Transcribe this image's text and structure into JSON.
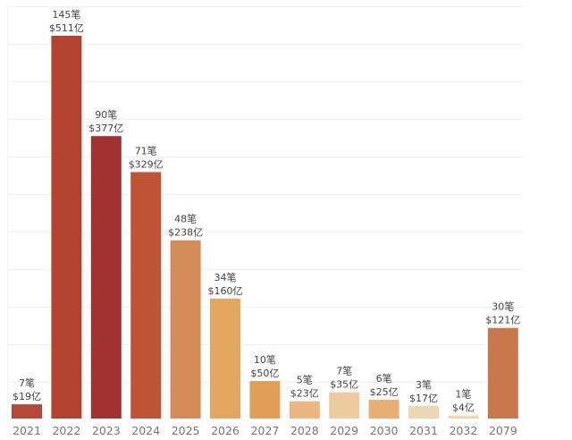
{
  "chart_data": {
    "type": "bar",
    "title": "",
    "xlabel": "",
    "ylabel": "",
    "ylim": [
      0,
      511
    ],
    "grid": true,
    "legend": "none",
    "categories": [
      "2021",
      "2022",
      "2023",
      "2024",
      "2025",
      "2026",
      "2027",
      "2028",
      "2029",
      "2030",
      "2031",
      "2032",
      "2079"
    ],
    "series": [
      {
        "name": "amount_yi_usd",
        "values": [
          19,
          511,
          377,
          329,
          238,
          160,
          50,
          23,
          35,
          25,
          17,
          4,
          121
        ]
      },
      {
        "name": "count",
        "values": [
          7,
          145,
          90,
          71,
          48,
          34,
          10,
          5,
          7,
          6,
          3,
          1,
          30
        ]
      }
    ],
    "count_labels": [
      "7笔",
      "145笔",
      "90笔",
      "71笔",
      "48笔",
      "34笔",
      "10笔",
      "5笔",
      "7笔",
      "6笔",
      "3笔",
      "1笔",
      "30笔"
    ],
    "amount_labels": [
      "$19亿",
      "$511亿",
      "$377亿",
      "$329亿",
      "$238亿",
      "$160亿",
      "$50亿",
      "$23亿",
      "$35亿",
      "$25亿",
      "$17亿",
      "$4亿",
      "$121亿"
    ],
    "colors": [
      "#B4483A",
      "#B34331",
      "#A23232",
      "#BF5336",
      "#D58B57",
      "#E3A661",
      "#E19E59",
      "#EBB67F",
      "#EECB9F",
      "#E8AE72",
      "#EBD6B6",
      "#EFD8B0",
      "#C8784C"
    ]
  }
}
